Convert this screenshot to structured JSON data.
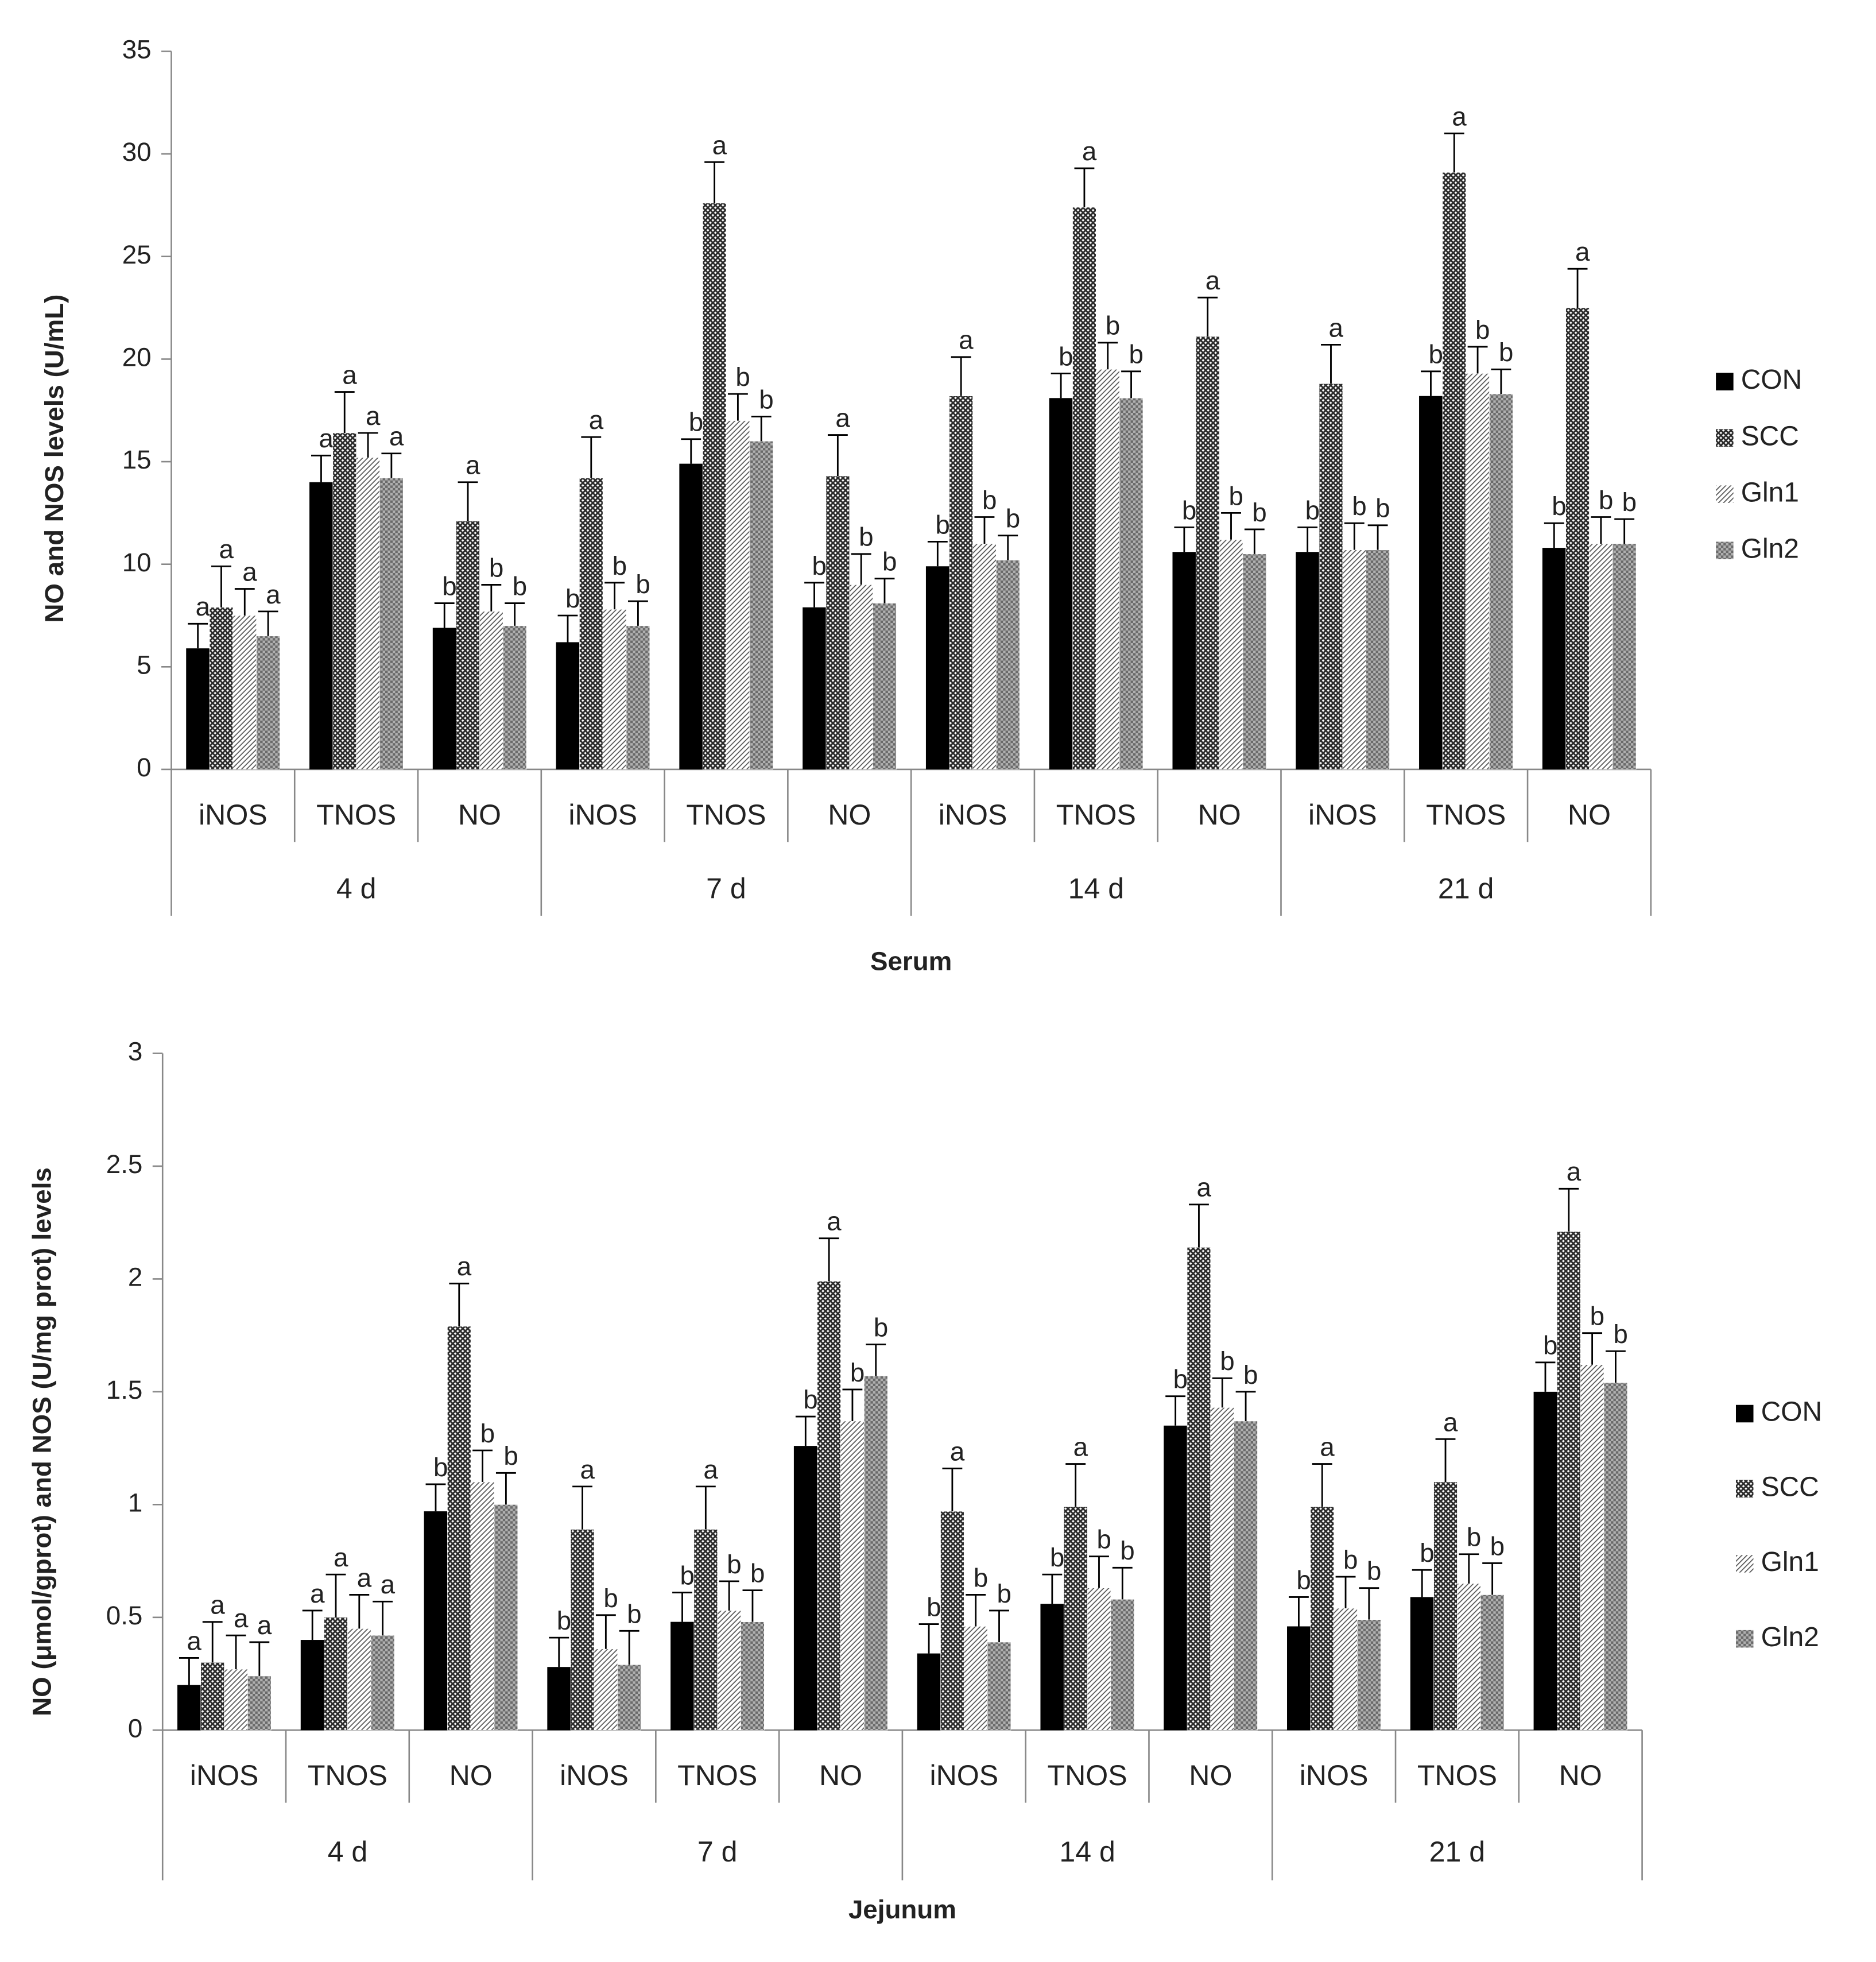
{
  "chart_data": [
    {
      "type": "bar",
      "x_label": "Serum",
      "y_label": "NO and NOS levels (U/mL)",
      "categories": [
        "iNOS",
        "TNOS",
        "NO",
        "iNOS",
        "TNOS",
        "NO",
        "iNOS",
        "TNOS",
        "NO",
        "iNOS",
        "TNOS",
        "NO"
      ],
      "groups": [
        "4 d",
        "7 d",
        "14 d",
        "21 d"
      ],
      "ylim": [
        0,
        35
      ],
      "yticks": [
        0,
        5,
        10,
        15,
        20,
        25,
        30,
        35
      ],
      "series": [
        {
          "name": "CON",
          "color": "#000000",
          "pattern": "solid",
          "values": [
            5.9,
            14.0,
            6.9,
            6.2,
            14.9,
            7.9,
            9.9,
            18.1,
            10.6,
            10.6,
            18.2,
            10.8
          ],
          "errors": [
            1.2,
            1.3,
            1.2,
            1.3,
            1.2,
            1.2,
            1.2,
            1.2,
            1.2,
            1.2,
            1.2,
            1.2
          ],
          "letters": [
            "a",
            "a",
            "b",
            "b",
            "b",
            "b",
            "b",
            "b",
            "b",
            "b",
            "b",
            "b"
          ]
        },
        {
          "name": "SCC",
          "color": "#2a2a2a",
          "pattern": "crosshatch",
          "values": [
            7.9,
            16.4,
            12.1,
            14.2,
            27.6,
            14.3,
            18.2,
            27.4,
            21.1,
            18.8,
            29.1,
            22.5
          ],
          "errors": [
            2.0,
            2.0,
            1.9,
            2.0,
            2.0,
            2.0,
            1.9,
            1.9,
            1.9,
            1.9,
            1.9,
            1.9
          ],
          "letters": [
            "a",
            "a",
            "a",
            "a",
            "a",
            "a",
            "a",
            "a",
            "a",
            "a",
            "a",
            "a"
          ]
        },
        {
          "name": "Gln1",
          "color": "#555555",
          "pattern": "diagonal",
          "values": [
            7.5,
            15.2,
            7.7,
            7.8,
            17.0,
            9.0,
            11.0,
            19.5,
            11.2,
            10.7,
            19.3,
            11.0
          ],
          "errors": [
            1.3,
            1.2,
            1.3,
            1.3,
            1.3,
            1.5,
            1.3,
            1.3,
            1.3,
            1.3,
            1.3,
            1.3
          ],
          "letters": [
            "a",
            "a",
            "b",
            "b",
            "b",
            "b",
            "b",
            "b",
            "b",
            "b",
            "b",
            "b"
          ]
        },
        {
          "name": "Gln2",
          "color": "#6a6a6a",
          "pattern": "dots",
          "values": [
            6.5,
            14.2,
            7.0,
            7.0,
            16.0,
            8.1,
            10.2,
            18.1,
            10.5,
            10.7,
            18.3,
            11.0
          ],
          "errors": [
            1.2,
            1.2,
            1.1,
            1.2,
            1.2,
            1.2,
            1.2,
            1.3,
            1.2,
            1.2,
            1.2,
            1.2
          ],
          "letters": [
            "a",
            "a",
            "b",
            "b",
            "b",
            "b",
            "b",
            "b",
            "b",
            "b",
            "b",
            "b"
          ]
        }
      ]
    },
    {
      "type": "bar",
      "x_label": "Jejunum",
      "y_label": "NO (μmol/gprot) and NOS (U/mg prot)  levels",
      "categories": [
        "iNOS",
        "TNOS",
        "NO",
        "iNOS",
        "TNOS",
        "NO",
        "iNOS",
        "TNOS",
        "NO",
        "iNOS",
        "TNOS",
        "NO"
      ],
      "groups": [
        "4 d",
        "7 d",
        "14 d",
        "21 d"
      ],
      "ylim": [
        0,
        3
      ],
      "yticks": [
        0,
        0.5,
        1,
        1.5,
        2,
        2.5,
        3
      ],
      "series": [
        {
          "name": "CON",
          "color": "#000000",
          "pattern": "solid",
          "values": [
            0.2,
            0.4,
            0.97,
            0.28,
            0.48,
            1.26,
            0.34,
            0.56,
            1.35,
            0.46,
            0.59,
            1.5
          ],
          "errors": [
            0.12,
            0.13,
            0.12,
            0.13,
            0.13,
            0.13,
            0.13,
            0.13,
            0.13,
            0.13,
            0.12,
            0.13
          ],
          "letters": [
            "a",
            "a",
            "b",
            "b",
            "b",
            "b",
            "b",
            "b",
            "b",
            "b",
            "b",
            "b"
          ]
        },
        {
          "name": "SCC",
          "color": "#2a2a2a",
          "pattern": "crosshatch",
          "values": [
            0.3,
            0.5,
            1.79,
            0.89,
            0.89,
            1.99,
            0.97,
            0.99,
            2.14,
            0.99,
            1.1,
            2.21
          ],
          "errors": [
            0.18,
            0.19,
            0.19,
            0.19,
            0.19,
            0.19,
            0.19,
            0.19,
            0.19,
            0.19,
            0.19,
            0.19
          ],
          "letters": [
            "a",
            "a",
            "a",
            "a",
            "a",
            "a",
            "a",
            "a",
            "a",
            "a",
            "a",
            "a"
          ]
        },
        {
          "name": "Gln1",
          "color": "#555555",
          "pattern": "diagonal",
          "values": [
            0.27,
            0.45,
            1.1,
            0.36,
            0.53,
            1.37,
            0.46,
            0.63,
            1.43,
            0.54,
            0.65,
            1.62
          ],
          "errors": [
            0.15,
            0.15,
            0.14,
            0.15,
            0.13,
            0.14,
            0.14,
            0.14,
            0.13,
            0.14,
            0.13,
            0.14
          ],
          "letters": [
            "a",
            "a",
            "b",
            "b",
            "b",
            "b",
            "b",
            "b",
            "b",
            "b",
            "b",
            "b"
          ]
        },
        {
          "name": "Gln2",
          "color": "#6a6a6a",
          "pattern": "dots",
          "values": [
            0.24,
            0.42,
            1.0,
            0.29,
            0.48,
            1.57,
            0.39,
            0.58,
            1.37,
            0.49,
            0.6,
            1.54
          ],
          "errors": [
            0.15,
            0.15,
            0.14,
            0.15,
            0.14,
            0.14,
            0.14,
            0.14,
            0.13,
            0.14,
            0.14,
            0.14
          ],
          "letters": [
            "a",
            "a",
            "b",
            "b",
            "b",
            "b",
            "b",
            "b",
            "b",
            "b",
            "b",
            "b"
          ]
        }
      ]
    }
  ]
}
